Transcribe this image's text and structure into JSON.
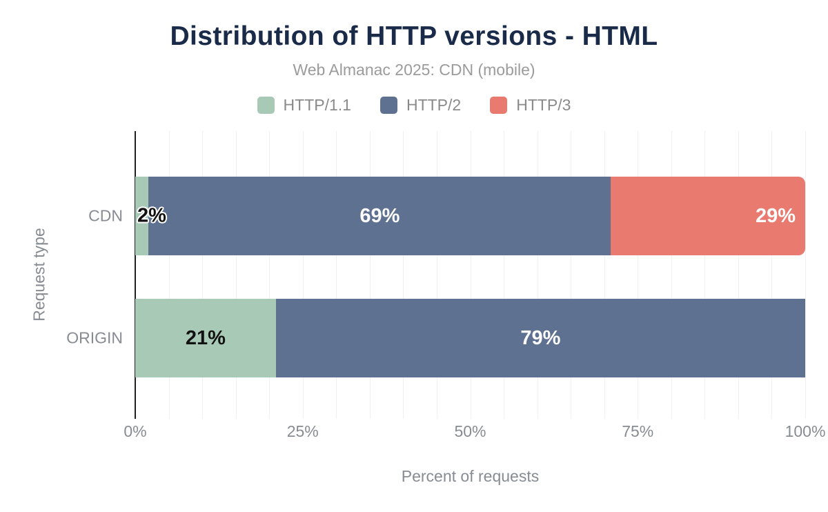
{
  "colors": {
    "title": "#1a2b49",
    "subtitle": "#9b9b9b",
    "legend_text": "#8a8a8a",
    "axis_text": "#878b92",
    "grid": "#f0f1f3",
    "axis_line": "#1f1f1f",
    "label_dark": "#111111",
    "label_light": "#ffffff",
    "bg": "#ffffff"
  },
  "chart_data": {
    "type": "bar",
    "orientation": "horizontal",
    "stacked": true,
    "title": "Distribution of HTTP versions - HTML",
    "subtitle": "Web Almanac 2025: CDN (mobile)",
    "xlabel": "Percent of requests",
    "ylabel": "Request type",
    "categories": [
      "CDN",
      "ORIGIN"
    ],
    "series": [
      {
        "name": "HTTP/1.1",
        "color": "#a9c9b7",
        "label_color": "#111111",
        "values": [
          2,
          21
        ]
      },
      {
        "name": "HTTP/2",
        "color": "#5f7190",
        "label_color": "#ffffff",
        "values": [
          69,
          79
        ]
      },
      {
        "name": "HTTP/3",
        "color": "#e87a70",
        "label_color": "#ffffff",
        "values": [
          29,
          0
        ]
      }
    ],
    "data_labels": [
      [
        {
          "text": "2%",
          "align": "row-start",
          "halo": true
        },
        {
          "text": "69%",
          "align": "center"
        },
        {
          "text": "29%",
          "align": "end",
          "rounded_end": true
        }
      ],
      [
        {
          "text": "21%",
          "align": "center"
        },
        {
          "text": "79%",
          "align": "center"
        },
        null
      ]
    ],
    "xlim": [
      0,
      100
    ],
    "grid_step": 5,
    "xticks": [
      {
        "pct": 0,
        "label": "0%"
      },
      {
        "pct": 25,
        "label": "25%"
      },
      {
        "pct": 50,
        "label": "50%"
      },
      {
        "pct": 75,
        "label": "75%"
      },
      {
        "pct": 100,
        "label": "100%"
      }
    ],
    "legend_position": "top"
  }
}
